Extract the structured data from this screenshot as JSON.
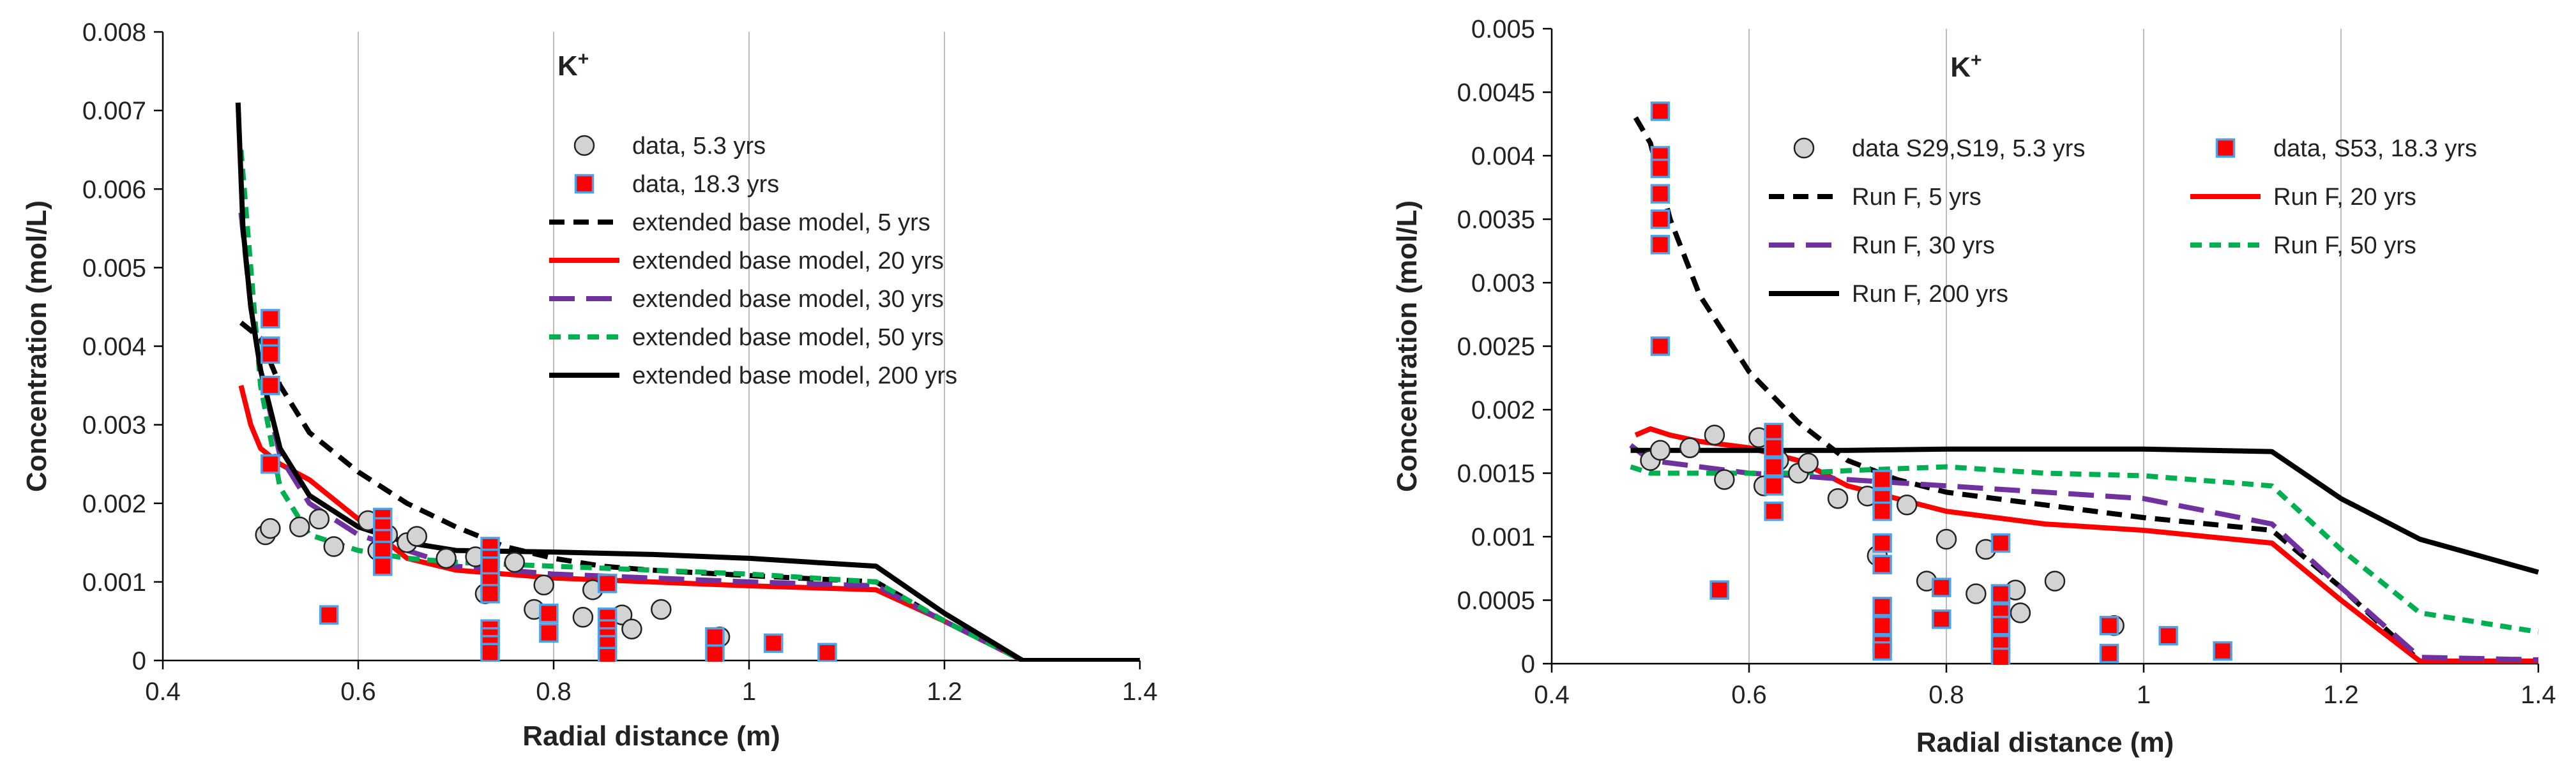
{
  "chart_data": [
    {
      "type": "scatter",
      "title": "K+",
      "title_main": "K",
      "title_sup": "+",
      "xlabel": "Radial distance (m)",
      "ylabel": "Concentration (mol/L)",
      "xlim": [
        0.4,
        1.4
      ],
      "ylim": [
        0,
        0.008
      ],
      "xticks": [
        "0.4",
        "0.6",
        "0.8",
        "1",
        "1.2",
        "1.4"
      ],
      "yticks": [
        "0",
        "0.001",
        "0.002",
        "0.003",
        "0.004",
        "0.005",
        "0.006",
        "0.007",
        "0.008"
      ],
      "grid": "vertical",
      "legend_position": "top-right",
      "legend_columns": 1,
      "series": [
        {
          "name": "data, 5.3 yrs",
          "kind": "circle",
          "color": "#d3d3d3",
          "x": [
            0.505,
            0.51,
            0.54,
            0.56,
            0.575,
            0.61,
            0.62,
            0.63,
            0.65,
            0.66,
            0.69,
            0.72,
            0.73,
            0.76,
            0.78,
            0.79,
            0.83,
            0.84,
            0.87,
            0.88,
            0.91,
            0.97
          ],
          "y": [
            0.0016,
            0.00168,
            0.0017,
            0.0018,
            0.00145,
            0.00178,
            0.0014,
            0.0016,
            0.0015,
            0.00158,
            0.0013,
            0.00132,
            0.00085,
            0.00125,
            0.00065,
            0.00096,
            0.00055,
            0.0009,
            0.00058,
            0.0004,
            0.00065,
            0.0003
          ]
        },
        {
          "name": "data, 18.3 yrs",
          "kind": "square",
          "color": "#ff0000",
          "x": [
            0.51,
            0.51,
            0.51,
            0.51,
            0.51,
            0.57,
            0.625,
            0.625,
            0.625,
            0.625,
            0.625,
            0.735,
            0.735,
            0.735,
            0.735,
            0.735,
            0.735,
            0.735,
            0.735,
            0.735,
            0.795,
            0.795,
            0.855,
            0.855,
            0.855,
            0.855,
            0.855,
            0.855,
            0.965,
            0.965,
            1.025,
            1.08
          ],
          "y": [
            0.00435,
            0.004,
            0.0039,
            0.0035,
            0.0025,
            0.00058,
            0.00182,
            0.0017,
            0.00155,
            0.0014,
            0.0012,
            0.00145,
            0.0013,
            0.0012,
            0.001,
            0.00085,
            0.0004,
            0.0003,
            0.0002,
            0.0001,
            0.0006,
            0.00035,
            0.00098,
            0.00055,
            0.0004,
            0.0003,
            0.0002,
            5e-05,
            0.0003,
            8e-05,
            0.00022,
            0.0001
          ]
        },
        {
          "name": "extended base model, 5 yrs",
          "kind": "line",
          "color": "#000000",
          "dash": "24 14",
          "x": [
            0.48,
            0.5,
            0.52,
            0.55,
            0.6,
            0.65,
            0.7,
            0.75,
            0.8,
            0.85,
            0.9,
            1.0,
            1.13,
            1.2,
            1.28,
            1.4
          ],
          "y": [
            0.0043,
            0.0041,
            0.0035,
            0.0029,
            0.0024,
            0.002,
            0.0017,
            0.00145,
            0.0013,
            0.0012,
            0.00115,
            0.00108,
            0.001,
            0.0005,
            0,
            0
          ]
        },
        {
          "name": "extended base model,  20 yrs",
          "kind": "line",
          "color": "#ff0000",
          "dash": "",
          "x": [
            0.48,
            0.49,
            0.5,
            0.52,
            0.55,
            0.6,
            0.65,
            0.7,
            0.8,
            0.9,
            1.0,
            1.13,
            1.2,
            1.28,
            1.4
          ],
          "y": [
            0.0035,
            0.003,
            0.0027,
            0.0025,
            0.0023,
            0.0018,
            0.0013,
            0.00115,
            0.00105,
            0.001,
            0.00095,
            0.0009,
            0.0005,
            0,
            0
          ]
        },
        {
          "name": "extended base model, 30 yrs",
          "kind": "line",
          "color": "#7030a0",
          "dash": "40 18",
          "x": [
            0.48,
            0.49,
            0.5,
            0.52,
            0.55,
            0.6,
            0.65,
            0.7,
            0.8,
            0.9,
            1.0,
            1.13,
            1.2,
            1.28,
            1.4
          ],
          "y": [
            0.0057,
            0.0045,
            0.0037,
            0.0026,
            0.002,
            0.0016,
            0.0014,
            0.0012,
            0.0011,
            0.00105,
            0.001,
            0.00095,
            0.0005,
            0,
            0
          ]
        },
        {
          "name": "extended base model, 50 yrs",
          "kind": "line",
          "color": "#00b050",
          "dash": "18 12",
          "x": [
            0.48,
            0.49,
            0.5,
            0.52,
            0.55,
            0.6,
            0.65,
            0.7,
            0.8,
            0.9,
            1.0,
            1.13,
            1.2,
            1.28,
            1.4
          ],
          "y": [
            0.0065,
            0.005,
            0.0035,
            0.0022,
            0.0016,
            0.0014,
            0.0013,
            0.00125,
            0.0012,
            0.00115,
            0.0011,
            0.001,
            0.0005,
            0,
            0
          ]
        },
        {
          "name": "extended base model, 200 yrs",
          "kind": "line",
          "color": "#000000",
          "dash": "",
          "x": [
            0.477,
            0.482,
            0.49,
            0.5,
            0.52,
            0.55,
            0.6,
            0.65,
            0.7,
            0.8,
            0.9,
            1.0,
            1.13,
            1.2,
            1.28,
            1.4
          ],
          "y": [
            0.0071,
            0.0055,
            0.0045,
            0.0037,
            0.0027,
            0.0021,
            0.0017,
            0.0015,
            0.0014,
            0.00138,
            0.00135,
            0.0013,
            0.0012,
            0.0006,
            0,
            0
          ]
        }
      ]
    },
    {
      "type": "scatter",
      "title": "K+",
      "title_main": "K",
      "title_sup": "+",
      "xlabel": "Radial distance (m)",
      "ylabel": "Concentration (mol/L)",
      "xlim": [
        0.4,
        1.4
      ],
      "ylim": [
        0,
        0.005
      ],
      "xticks": [
        "0.4",
        "0.6",
        "0.8",
        "1",
        "1.2",
        "1.4"
      ],
      "yticks": [
        "0",
        "0.0005",
        "0.001",
        "0.0015",
        "0.002",
        "0.0025",
        "0.003",
        "0.0035",
        "0.004",
        "0.0045",
        "0.005"
      ],
      "grid": "vertical",
      "legend_position": "top",
      "legend_columns": 2,
      "series": [
        {
          "name": "data S29,S19, 5.3 yrs",
          "kind": "circle",
          "color": "#d3d3d3",
          "x": [
            0.5,
            0.51,
            0.54,
            0.565,
            0.575,
            0.61,
            0.615,
            0.63,
            0.65,
            0.66,
            0.69,
            0.72,
            0.73,
            0.76,
            0.78,
            0.8,
            0.83,
            0.84,
            0.87,
            0.875,
            0.91,
            0.97
          ],
          "y": [
            0.0016,
            0.00168,
            0.0017,
            0.0018,
            0.00145,
            0.00178,
            0.0014,
            0.0016,
            0.0015,
            0.00158,
            0.0013,
            0.00132,
            0.00085,
            0.00125,
            0.00065,
            0.00098,
            0.00055,
            0.0009,
            0.00058,
            0.0004,
            0.00065,
            0.0003
          ]
        },
        {
          "name": "data, S53, 18.3 yrs",
          "kind": "square",
          "color": "#ff0000",
          "x": [
            0.51,
            0.51,
            0.51,
            0.51,
            0.51,
            0.51,
            0.51,
            0.57,
            0.625,
            0.625,
            0.625,
            0.625,
            0.625,
            0.735,
            0.735,
            0.735,
            0.735,
            0.735,
            0.735,
            0.735,
            0.735,
            0.735,
            0.795,
            0.795,
            0.855,
            0.855,
            0.855,
            0.855,
            0.855,
            0.855,
            0.965,
            0.965,
            1.025,
            1.08
          ],
          "y": [
            0.00435,
            0.004,
            0.0039,
            0.0037,
            0.0035,
            0.0033,
            0.0025,
            0.00058,
            0.00182,
            0.0017,
            0.00155,
            0.0014,
            0.0012,
            0.00145,
            0.0013,
            0.0012,
            0.00095,
            0.00078,
            0.00045,
            0.0003,
            0.00015,
            0.0001,
            0.0006,
            0.00035,
            0.00095,
            0.00055,
            0.0004,
            0.0003,
            0.00015,
            5e-05,
            0.0003,
            8e-05,
            0.00022,
            0.0001
          ]
        },
        {
          "name": "Run F, 5 yrs",
          "kind": "line",
          "color": "#000000",
          "dash": "24 14",
          "x": [
            0.485,
            0.5,
            0.52,
            0.55,
            0.6,
            0.65,
            0.7,
            0.75,
            0.8,
            0.9,
            1.0,
            1.13,
            1.2,
            1.28,
            1.4
          ],
          "y": [
            0.0043,
            0.0041,
            0.0035,
            0.0029,
            0.0023,
            0.0019,
            0.0016,
            0.00145,
            0.00135,
            0.00125,
            0.00115,
            0.00105,
            0.0006,
            2e-05,
            2e-05
          ]
        },
        {
          "name": "Run F, 20 yrs",
          "kind": "line",
          "color": "#ff0000",
          "dash": "",
          "x": [
            0.485,
            0.5,
            0.52,
            0.55,
            0.6,
            0.65,
            0.7,
            0.8,
            0.9,
            1.0,
            1.13,
            1.2,
            1.28,
            1.4
          ],
          "y": [
            0.0018,
            0.00185,
            0.0018,
            0.00175,
            0.0017,
            0.0016,
            0.0014,
            0.0012,
            0.0011,
            0.00105,
            0.00095,
            0.0005,
            2e-05,
            2e-05
          ]
        },
        {
          "name": "Run F, 30 yrs",
          "kind": "line",
          "color": "#7030a0",
          "dash": "40 18",
          "x": [
            0.48,
            0.5,
            0.55,
            0.6,
            0.65,
            0.7,
            0.8,
            0.9,
            1.0,
            1.13,
            1.2,
            1.28,
            1.4
          ],
          "y": [
            0.00172,
            0.0016,
            0.00155,
            0.0015,
            0.00148,
            0.00145,
            0.0014,
            0.00135,
            0.0013,
            0.0011,
            0.0006,
            5e-05,
            3e-05
          ]
        },
        {
          "name": "Run F, 50 yrs",
          "kind": "line",
          "color": "#00b050",
          "dash": "18 12",
          "x": [
            0.48,
            0.5,
            0.55,
            0.6,
            0.65,
            0.7,
            0.8,
            0.9,
            1.0,
            1.13,
            1.2,
            1.28,
            1.4
          ],
          "y": [
            0.00155,
            0.0015,
            0.0015,
            0.0015,
            0.0015,
            0.00152,
            0.00155,
            0.0015,
            0.00148,
            0.0014,
            0.0009,
            0.0004,
            0.00025
          ]
        },
        {
          "name": "Run F, 200 yrs",
          "kind": "line",
          "color": "#000000",
          "dash": "",
          "x": [
            0.48,
            0.55,
            0.6,
            0.7,
            0.8,
            0.9,
            1.0,
            1.13,
            1.2,
            1.28,
            1.4
          ],
          "y": [
            0.00168,
            0.00168,
            0.00168,
            0.00168,
            0.00169,
            0.00169,
            0.00169,
            0.00167,
            0.0013,
            0.00098,
            0.00072
          ]
        }
      ]
    }
  ]
}
